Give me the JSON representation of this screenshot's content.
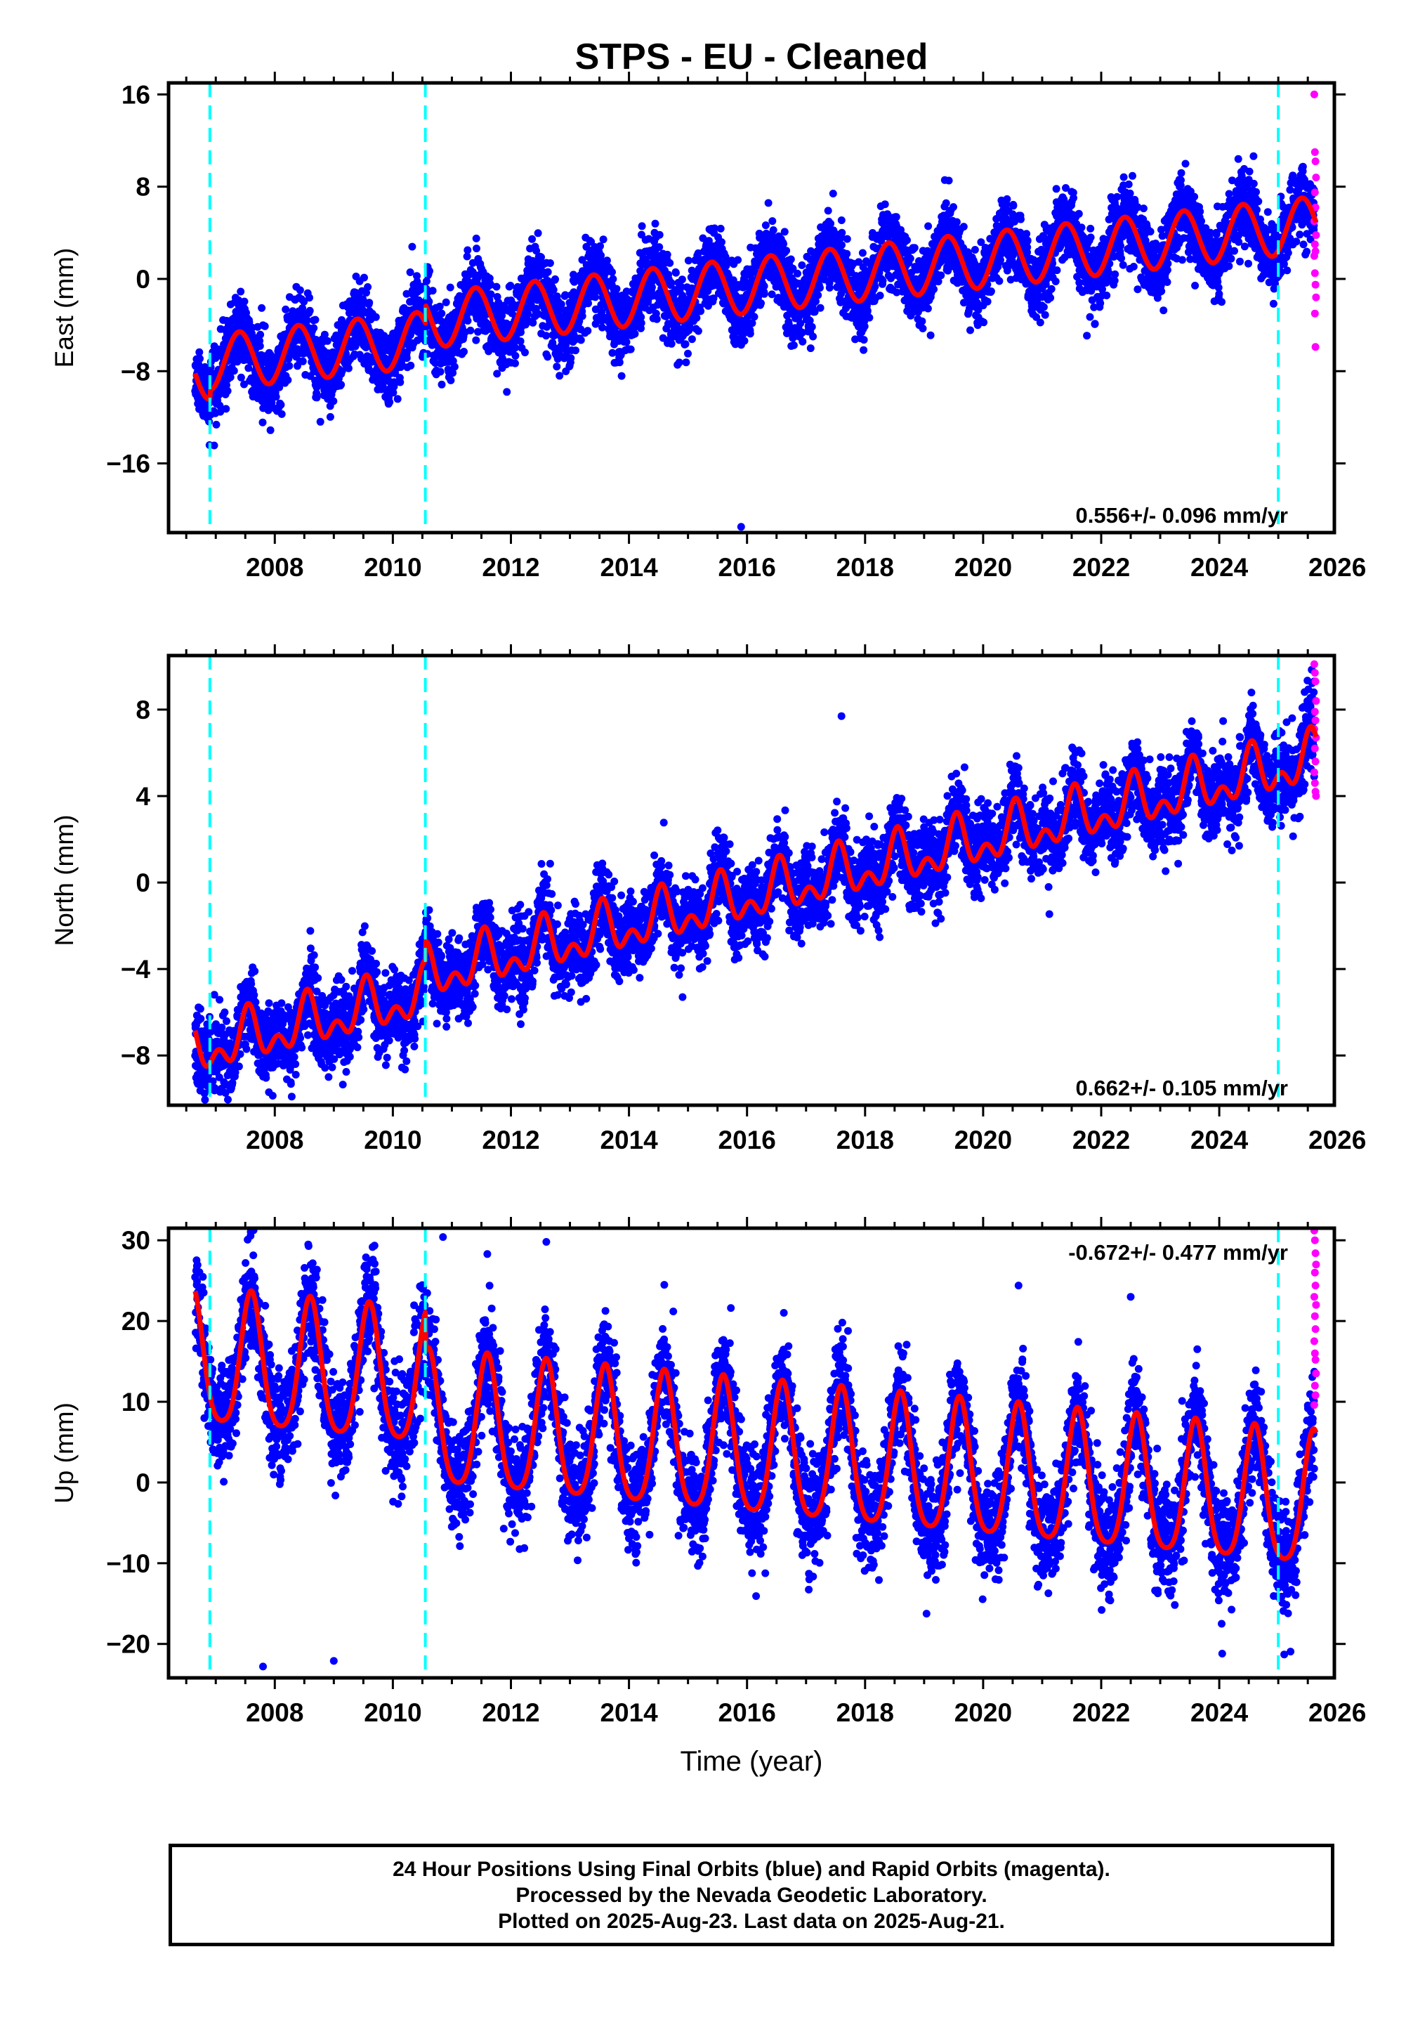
{
  "figure": {
    "title": "STPS  - EU - Cleaned",
    "xlabel": "Time (year)",
    "colors": {
      "final_orbits": "#0000ff",
      "rapid_orbits": "#ff00ff",
      "model_fit": "#ff0000",
      "offset_lines": "#00ffff",
      "axes": "#000000"
    }
  },
  "footer": {
    "line1": "24 Hour Positions Using Final Orbits (blue) and Rapid Orbits (magenta).",
    "line2": "Processed by the Nevada Geodetic Laboratory.",
    "line3": "Plotted on 2025-Aug-23. Last data on 2025-Aug-21."
  },
  "chart_data": [
    {
      "type": "scatter",
      "ylabel": "East (mm)",
      "rate_label": "0.556+/- 0.096 mm/yr",
      "rate_mm_per_yr": 0.556,
      "rate_sigma_mm_per_yr": 0.096,
      "xlim": [
        2006.2,
        2025.95
      ],
      "ylim": [
        -22,
        17
      ],
      "xticks": [
        2008,
        2010,
        2012,
        2014,
        2016,
        2018,
        2020,
        2022,
        2024,
        2026
      ],
      "yticks": [
        16,
        8,
        0,
        -8,
        -16
      ],
      "ytick_labels": [
        "16",
        "8",
        "0",
        "−8",
        "−16"
      ],
      "offset_epochs": [
        2006.9,
        2010.55,
        2025.0
      ],
      "data_span": [
        2006.65,
        2025.64
      ],
      "model": {
        "intercept_2016": -0.6,
        "rate": 0.556,
        "annual_amplitude": 2.4,
        "annual_peak": 0.4,
        "semiannual_amplitude": 0.0,
        "semiannual_peak": 0.0
      },
      "offsets": [
        {
          "epoch": 2006.9,
          "step": -0.8
        },
        {
          "epoch": 2010.55,
          "step": -1.6
        },
        {
          "epoch": 2025.0,
          "step": 0.0
        }
      ],
      "noise_sigma": 1.6,
      "outliers": [
        {
          "x": 2015.9,
          "y": -21.5
        }
      ],
      "rapid_orbits": {
        "x": [
          2025.61,
          2025.62,
          2025.63,
          2025.64,
          2025.62,
          2025.63,
          2025.61,
          2025.64,
          2025.62,
          2025.63,
          2025.61,
          2025.62,
          2025.63,
          2025.64,
          2025.62,
          2025.63
        ],
        "y": [
          16.0,
          11.0,
          10.2,
          8.8,
          7.5,
          6.2,
          5.0,
          3.8,
          3.0,
          2.4,
          2.0,
          0.5,
          -0.5,
          -1.6,
          -3.0,
          -5.9
        ]
      },
      "seed": 11
    },
    {
      "type": "scatter",
      "ylabel": "North (mm)",
      "rate_label": "0.662+/- 0.105 mm/yr",
      "rate_mm_per_yr": 0.662,
      "rate_sigma_mm_per_yr": 0.105,
      "xlim": [
        2006.2,
        2025.95
      ],
      "ylim": [
        -10.3,
        10.5
      ],
      "xticks": [
        2008,
        2010,
        2012,
        2014,
        2016,
        2018,
        2020,
        2022,
        2024,
        2026
      ],
      "yticks": [
        8,
        4,
        0,
        -4,
        -8
      ],
      "ytick_labels": [
        "8",
        "4",
        "0",
        "−4",
        "−8"
      ],
      "offset_epochs": [
        2006.9,
        2010.55,
        2025.0
      ],
      "data_span": [
        2006.65,
        2025.64
      ],
      "model": {
        "intercept_2016": -0.7,
        "rate": 0.662,
        "annual_amplitude": 0.9,
        "annual_peak": 0.55,
        "semiannual_amplitude": 0.7,
        "semiannual_peak": 0.55
      },
      "offsets": [
        {
          "epoch": 2006.9,
          "step": 0.0
        },
        {
          "epoch": 2010.55,
          "step": -0.9
        },
        {
          "epoch": 2025.0,
          "step": 0.0
        }
      ],
      "noise_sigma": 0.9,
      "outliers": [
        {
          "x": 2007.9,
          "y": -9.7
        },
        {
          "x": 2008.3,
          "y": -8.4
        },
        {
          "x": 2017.6,
          "y": 7.7
        }
      ],
      "rapid_orbits": {
        "x": [
          2025.61,
          2025.62,
          2025.63,
          2025.64,
          2025.62,
          2025.63,
          2025.61,
          2025.64,
          2025.62,
          2025.63,
          2025.61,
          2025.62,
          2025.63,
          2025.64
        ],
        "y": [
          10.1,
          9.7,
          9.3,
          8.4,
          7.9,
          7.5,
          7.1,
          6.7,
          6.2,
          5.6,
          5.1,
          4.6,
          4.2,
          4.0
        ]
      },
      "seed": 23
    },
    {
      "type": "scatter",
      "ylabel": "Up (mm)",
      "rate_label": "-0.672+/- 0.477 mm/yr",
      "rate_mm_per_yr": -0.672,
      "rate_sigma_mm_per_yr": 0.477,
      "xlim": [
        2006.2,
        2025.95
      ],
      "ylim": [
        -24.2,
        31.5
      ],
      "xticks": [
        2008,
        2010,
        2012,
        2014,
        2016,
        2018,
        2020,
        2022,
        2024,
        2026
      ],
      "yticks": [
        30,
        20,
        10,
        0,
        -10,
        -20
      ],
      "ytick_labels": [
        "30",
        "20",
        "10",
        "0",
        "−10",
        "−20"
      ],
      "offset_epochs": [
        2006.9,
        2010.55,
        2025.0
      ],
      "data_span": [
        2006.65,
        2025.64
      ],
      "model": {
        "intercept_2016": 3.4,
        "rate": -0.672,
        "annual_amplitude": 8.2,
        "annual_peak": 0.6,
        "semiannual_amplitude": 1.5,
        "semiannual_peak": 0.6
      },
      "offsets": [
        {
          "epoch": 2006.9,
          "step": 0.0
        },
        {
          "epoch": 2010.55,
          "step": 5.0
        },
        {
          "epoch": 2025.0,
          "step": 0.0
        }
      ],
      "noise_sigma": 3.2,
      "outliers": [
        {
          "x": 2010.85,
          "y": 30.4
        },
        {
          "x": 2012.6,
          "y": 29.8
        },
        {
          "x": 2011.6,
          "y": 28.3
        },
        {
          "x": 2008.55,
          "y": 21.3
        },
        {
          "x": 2007.8,
          "y": -22.8
        },
        {
          "x": 2009.0,
          "y": -22.1
        },
        {
          "x": 2024.05,
          "y": -21.2
        },
        {
          "x": 2025.1,
          "y": -21.3
        },
        {
          "x": 2020.6,
          "y": 24.4
        },
        {
          "x": 2022.5,
          "y": 23.0
        }
      ],
      "rapid_orbits": {
        "x": [
          2025.61,
          2025.62,
          2025.63,
          2025.64,
          2025.62,
          2025.63,
          2025.61,
          2025.64,
          2025.62,
          2025.63,
          2025.61,
          2025.62,
          2025.63,
          2025.64,
          2025.62,
          2025.63,
          2025.61
        ],
        "y": [
          31.2,
          30.0,
          28.4,
          27.0,
          26.0,
          24.4,
          23.0,
          22.0,
          20.6,
          19.0,
          17.5,
          16.0,
          15.2,
          13.5,
          12.0,
          10.8,
          9.6
        ]
      },
      "seed": 37
    }
  ]
}
